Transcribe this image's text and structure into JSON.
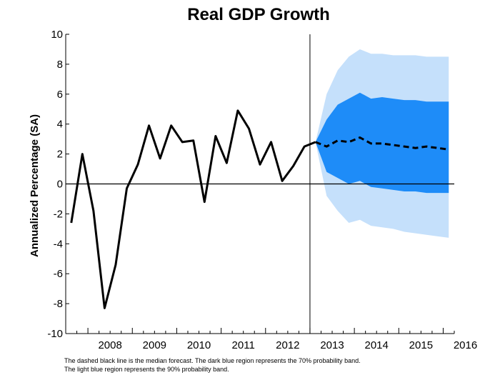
{
  "chart_data": {
    "type": "line",
    "title": "Real GDP Growth",
    "ylabel": "Annualized Percentage (SA)",
    "xlabel": "",
    "ylim": [
      -10,
      10
    ],
    "yticks": [
      -10,
      -8,
      -6,
      -4,
      -2,
      0,
      2,
      4,
      6,
      8,
      10
    ],
    "year_labels": [
      "2008",
      "2009",
      "2010",
      "2011",
      "2012",
      "2013",
      "2014",
      "2015",
      "2016"
    ],
    "xlim": [
      2007.5,
      2016.25
    ],
    "forecast_start": 2013.0,
    "grid": false,
    "series": [
      {
        "style": "solid",
        "color": "#000000",
        "x": [
          2007.625,
          2007.875,
          2008.125,
          2008.375,
          2008.625,
          2008.875,
          2009.125,
          2009.375,
          2009.625,
          2009.875,
          2010.125,
          2010.375,
          2010.625,
          2010.875,
          2011.125,
          2011.375,
          2011.625,
          2011.875,
          2012.125,
          2012.375,
          2012.625,
          2012.875,
          2013.125
        ],
        "y": [
          -2.6,
          2.0,
          -1.8,
          -8.3,
          -5.4,
          -0.3,
          1.3,
          3.9,
          1.7,
          3.9,
          2.8,
          2.9,
          -1.2,
          3.2,
          1.4,
          4.9,
          3.7,
          1.3,
          2.8,
          0.2,
          1.2,
          2.5,
          2.8
        ]
      },
      {
        "style": "dashed",
        "color": "#000000",
        "x": [
          2013.125,
          2013.375,
          2013.625,
          2013.875,
          2014.125,
          2014.375,
          2014.625,
          2014.875,
          2015.125,
          2015.375,
          2015.625,
          2015.875,
          2016.125
        ],
        "y": [
          2.8,
          2.5,
          2.9,
          2.8,
          3.1,
          2.7,
          2.7,
          2.6,
          2.5,
          2.4,
          2.5,
          2.4,
          2.3
        ]
      }
    ],
    "bands": [
      {
        "color": "#c5e0fb",
        "x": [
          2013.125,
          2013.375,
          2013.625,
          2013.875,
          2014.125,
          2014.375,
          2014.625,
          2014.875,
          2015.125,
          2015.375,
          2015.625,
          2015.875,
          2016.125
        ],
        "lower": [
          2.8,
          -0.8,
          -1.8,
          -2.6,
          -2.4,
          -2.8,
          -2.9,
          -3.0,
          -3.2,
          -3.3,
          -3.4,
          -3.5,
          -3.6
        ],
        "upper": [
          2.8,
          6.0,
          7.6,
          8.5,
          9.0,
          8.7,
          8.7,
          8.6,
          8.6,
          8.6,
          8.5,
          8.5,
          8.5
        ]
      },
      {
        "color": "#1e8cf8",
        "x": [
          2013.125,
          2013.375,
          2013.625,
          2013.875,
          2014.125,
          2014.375,
          2014.625,
          2014.875,
          2015.125,
          2015.375,
          2015.625,
          2015.875,
          2016.125
        ],
        "lower": [
          2.8,
          0.8,
          0.4,
          0.0,
          0.2,
          -0.2,
          -0.3,
          -0.4,
          -0.5,
          -0.5,
          -0.6,
          -0.6,
          -0.6
        ],
        "upper": [
          2.8,
          4.3,
          5.3,
          5.7,
          6.1,
          5.7,
          5.8,
          5.7,
          5.6,
          5.6,
          5.5,
          5.5,
          5.5
        ]
      }
    ]
  },
  "footnote": {
    "line1": "The dashed black line is the median forecast. The dark blue region represents the 70% probability band.",
    "line2": "The light blue region represents the 90% probability band."
  }
}
